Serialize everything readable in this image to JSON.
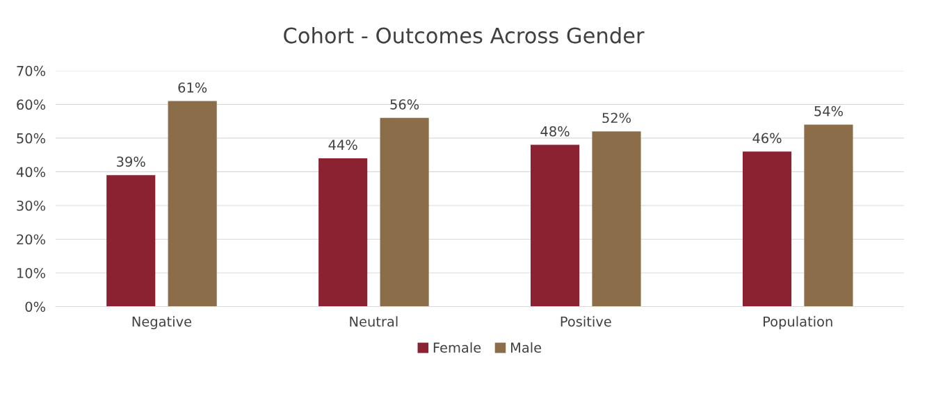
{
  "chart_data": {
    "type": "bar",
    "title": "Cohort - Outcomes Across Gender",
    "categories": [
      "Negative",
      "Neutral",
      "Positive",
      "Population"
    ],
    "series": [
      {
        "name": "Female",
        "color": "#8b2232",
        "values": [
          39,
          44,
          48,
          46
        ],
        "value_labels": [
          "39%",
          "44%",
          "48%",
          "46%"
        ]
      },
      {
        "name": "Male",
        "color": "#8b6d4a",
        "values": [
          61,
          56,
          52,
          54
        ],
        "value_labels": [
          "61%",
          "56%",
          "52%",
          "54%"
        ]
      }
    ],
    "ylim": [
      0,
      70
    ],
    "yticks": [
      {
        "value": 0,
        "label": "0%"
      },
      {
        "value": 10,
        "label": "10%"
      },
      {
        "value": 20,
        "label": "20%"
      },
      {
        "value": 30,
        "label": "30%"
      },
      {
        "value": 40,
        "label": "40%"
      },
      {
        "value": 50,
        "label": "50%"
      },
      {
        "value": 60,
        "label": "60%"
      },
      {
        "value": 70,
        "label": "70%"
      }
    ],
    "grid": "y",
    "legend": "bottom"
  }
}
